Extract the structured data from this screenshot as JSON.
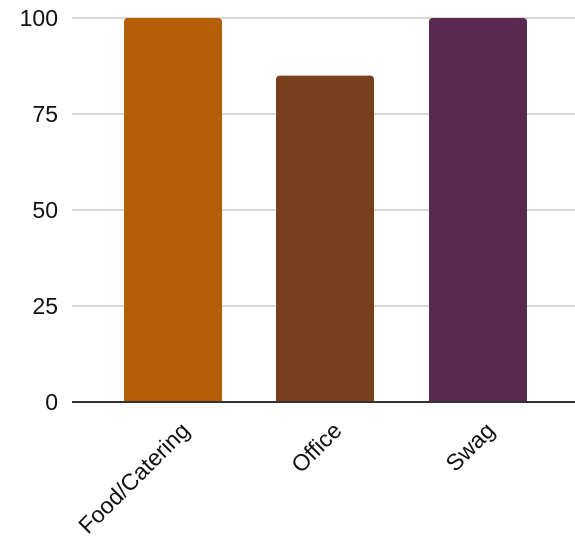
{
  "chart_data": {
    "type": "bar",
    "categories": [
      "Food/Catering",
      "Office",
      "Swag"
    ],
    "values": [
      100,
      85,
      100
    ],
    "colors": [
      "#B45F06",
      "#783F1D",
      "#582A4F"
    ],
    "yticks": [
      "0",
      "25",
      "50",
      "75",
      "100"
    ],
    "ylim": [
      0,
      100
    ],
    "grid": true,
    "gridColor": "#CCCCCC",
    "axisColor": "#333333"
  }
}
